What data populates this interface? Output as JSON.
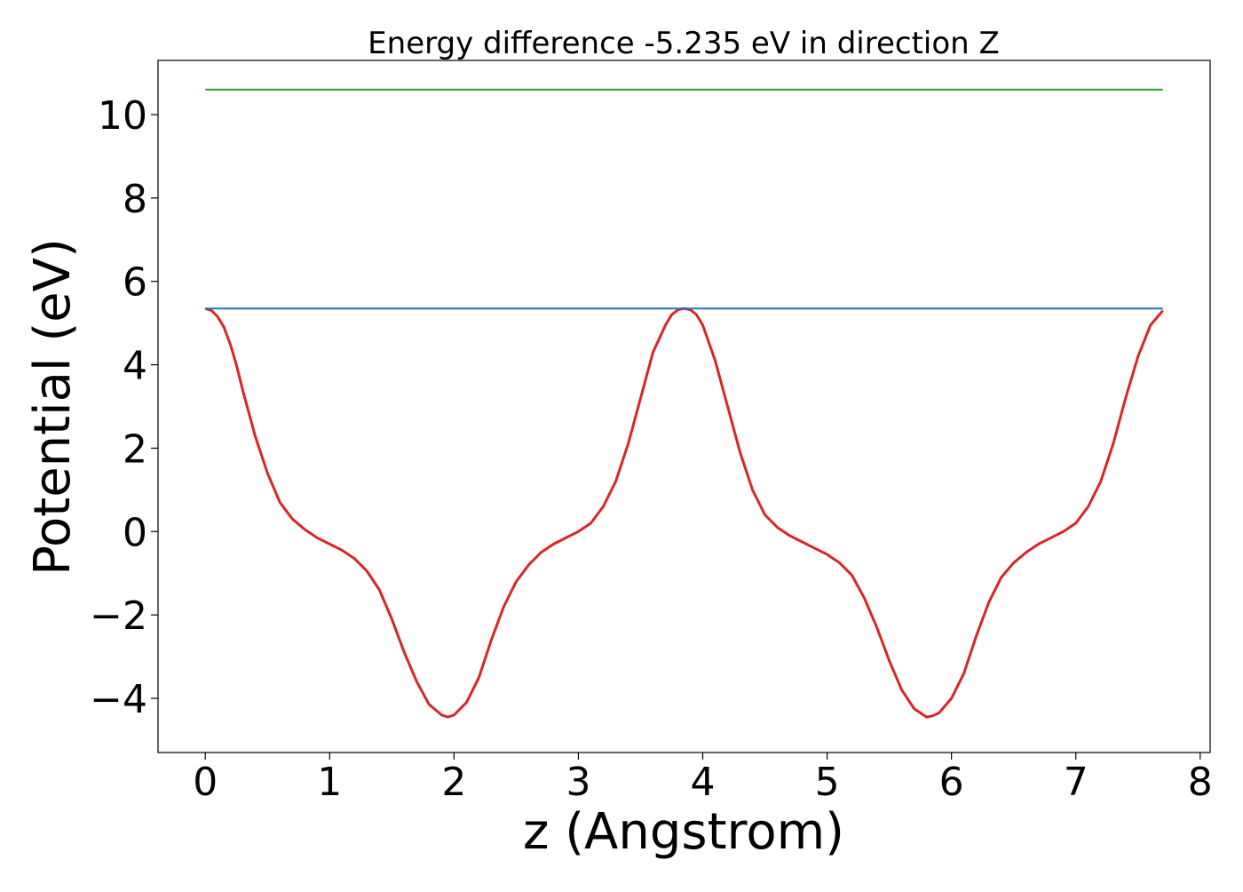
{
  "chart_data": {
    "type": "line",
    "title": "Energy difference -5.235 eV in direction Z",
    "xlabel": "z (Angstrom)",
    "ylabel": "Potential (eV)",
    "xlim": [
      -0.38,
      8.08
    ],
    "ylim": [
      -5.3,
      11.3
    ],
    "xticks": [
      0,
      1,
      2,
      3,
      4,
      5,
      6,
      7,
      8
    ],
    "yticks": [
      -4,
      -2,
      0,
      2,
      4,
      6,
      8,
      10
    ],
    "xtick_labels": [
      "0",
      "1",
      "2",
      "3",
      "4",
      "5",
      "6",
      "7",
      "8"
    ],
    "ytick_labels": [
      "−4",
      "−2",
      "0",
      "2",
      "4",
      "6",
      "8",
      "10"
    ],
    "grid": false,
    "series": [
      {
        "color": "#d62728",
        "x": [
          0.0,
          0.05,
          0.1,
          0.15,
          0.2,
          0.25,
          0.3,
          0.4,
          0.5,
          0.6,
          0.7,
          0.8,
          0.9,
          1.0,
          1.1,
          1.2,
          1.3,
          1.4,
          1.5,
          1.6,
          1.7,
          1.8,
          1.9,
          1.95,
          2.0,
          2.1,
          2.2,
          2.3,
          2.4,
          2.5,
          2.6,
          2.7,
          2.8,
          2.9,
          3.0,
          3.1,
          3.2,
          3.3,
          3.4,
          3.5,
          3.6,
          3.7,
          3.75,
          3.8,
          3.85,
          3.9,
          3.95,
          4.0,
          4.1,
          4.2,
          4.3,
          4.4,
          4.5,
          4.6,
          4.7,
          4.8,
          4.9,
          5.0,
          5.1,
          5.2,
          5.3,
          5.4,
          5.5,
          5.6,
          5.7,
          5.8,
          5.85,
          5.9,
          6.0,
          6.1,
          6.2,
          6.3,
          6.4,
          6.5,
          6.6,
          6.7,
          6.8,
          6.9,
          7.0,
          7.1,
          7.2,
          7.3,
          7.4,
          7.5,
          7.6,
          7.7
        ],
        "y": [
          5.35,
          5.3,
          5.15,
          4.9,
          4.5,
          4.0,
          3.4,
          2.3,
          1.4,
          0.7,
          0.3,
          0.05,
          -0.15,
          -0.3,
          -0.45,
          -0.65,
          -0.95,
          -1.4,
          -2.1,
          -2.9,
          -3.6,
          -4.15,
          -4.4,
          -4.45,
          -4.4,
          -4.1,
          -3.5,
          -2.6,
          -1.8,
          -1.2,
          -0.8,
          -0.5,
          -0.3,
          -0.15,
          0.0,
          0.2,
          0.6,
          1.2,
          2.1,
          3.2,
          4.3,
          4.95,
          5.2,
          5.32,
          5.35,
          5.32,
          5.2,
          4.95,
          4.1,
          3.0,
          1.9,
          1.0,
          0.4,
          0.1,
          -0.1,
          -0.25,
          -0.4,
          -0.55,
          -0.75,
          -1.05,
          -1.6,
          -2.3,
          -3.1,
          -3.8,
          -4.25,
          -4.45,
          -4.42,
          -4.35,
          -4.0,
          -3.4,
          -2.5,
          -1.7,
          -1.1,
          -0.75,
          -0.5,
          -0.3,
          -0.15,
          0.0,
          0.2,
          0.6,
          1.2,
          2.1,
          3.2,
          4.2,
          4.95,
          5.3
        ]
      },
      {
        "color": "#1f77b4",
        "x": [
          0.0,
          7.7
        ],
        "y": [
          5.35,
          5.35
        ]
      },
      {
        "color": "#2ca02c",
        "x": [
          0.0,
          7.7
        ],
        "y": [
          10.6,
          10.6
        ]
      }
    ]
  }
}
